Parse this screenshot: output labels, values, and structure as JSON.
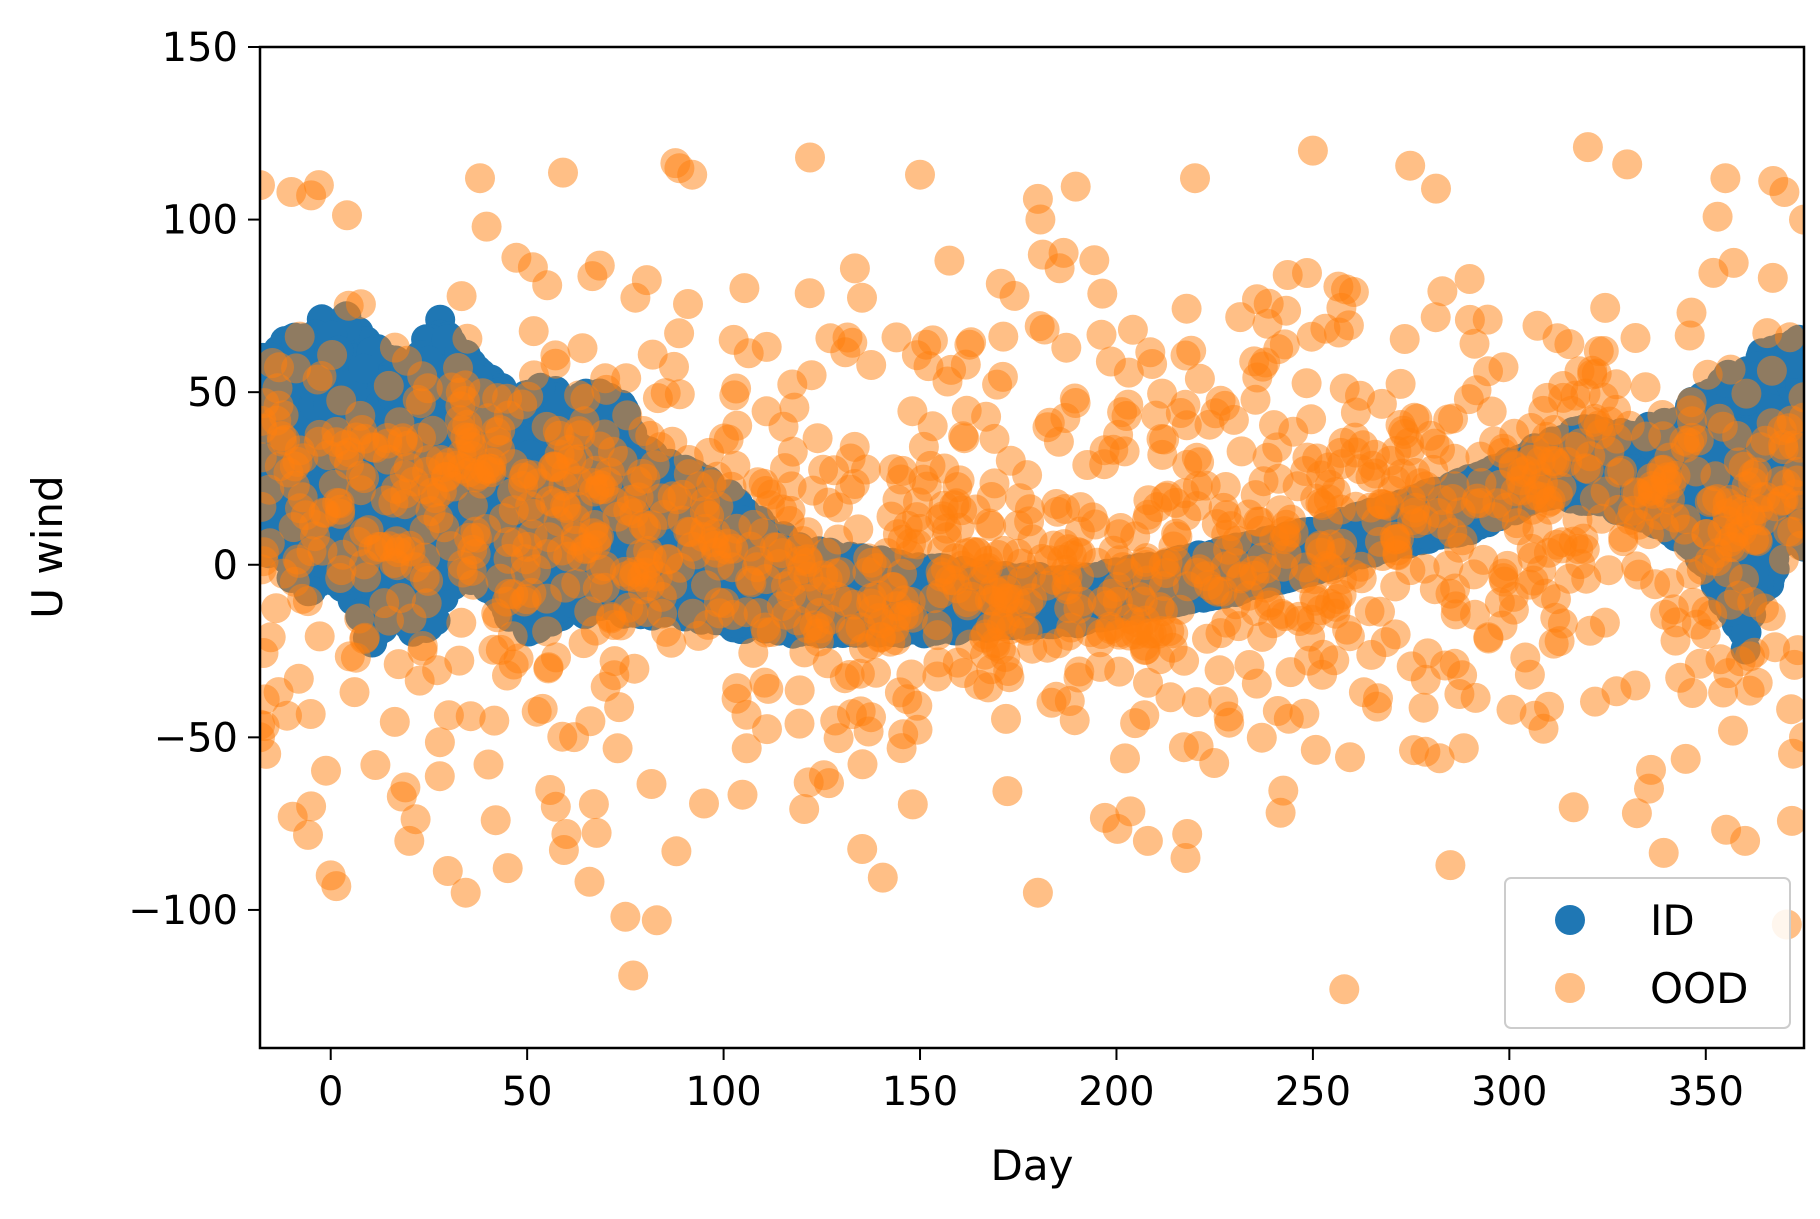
{
  "chart_data": {
    "type": "scatter",
    "xlabel": "Day",
    "ylabel": "U wind",
    "xlim": [
      -18,
      375
    ],
    "ylim": [
      -140,
      150
    ],
    "xticks": [
      0,
      50,
      100,
      150,
      200,
      250,
      300,
      350
    ],
    "yticks": [
      -100,
      -50,
      0,
      50,
      100,
      150
    ],
    "xtick_labels": [
      "0",
      "50",
      "100",
      "150",
      "200",
      "250",
      "300",
      "350"
    ],
    "ytick_labels": [
      "−100",
      "−50",
      "0",
      "50",
      "100",
      "150"
    ],
    "grid": false,
    "legend_position": "lower-right",
    "series": [
      {
        "name": "ID",
        "color": "#1f77b4",
        "alpha": 1.0,
        "band": {
          "x": [
            -18,
            -10,
            -5,
            0,
            5,
            10,
            15,
            20,
            25,
            30,
            35,
            40,
            45,
            50,
            55,
            60,
            65,
            70,
            75,
            80,
            85,
            90,
            100,
            110,
            120,
            130,
            150,
            170,
            190,
            210,
            230,
            250,
            270,
            290,
            300,
            310,
            320,
            330,
            340,
            350,
            355,
            360,
            365,
            370,
            375
          ],
          "upper": [
            62,
            66,
            70,
            73,
            73,
            68,
            60,
            58,
            70,
            72,
            60,
            55,
            50,
            50,
            52,
            50,
            50,
            52,
            45,
            35,
            30,
            28,
            22,
            12,
            5,
            3,
            0,
            -3,
            -4,
            0,
            5,
            10,
            17,
            25,
            30,
            36,
            40,
            38,
            42,
            50,
            55,
            58,
            62,
            64,
            66
          ],
          "lower": [
            5,
            -5,
            -10,
            -5,
            -10,
            -25,
            -15,
            -20,
            -25,
            -10,
            -5,
            -10,
            -15,
            -20,
            -18,
            -15,
            -15,
            -15,
            -15,
            -15,
            -15,
            -15,
            -18,
            -20,
            -20,
            -20,
            -20,
            -18,
            -17,
            -12,
            -8,
            -2,
            5,
            10,
            15,
            20,
            18,
            15,
            10,
            0,
            -15,
            -25,
            -10,
            5,
            5
          ]
        }
      },
      {
        "name": "OOD",
        "color": "#ff7f0e",
        "alpha": 0.5,
        "point_count": 1500,
        "notable_points": [
          [
            -18,
            110
          ],
          [
            -10,
            108
          ],
          [
            -5,
            107
          ],
          [
            -3,
            110
          ],
          [
            38,
            112
          ],
          [
            92,
            113
          ],
          [
            122,
            118
          ],
          [
            150,
            113
          ],
          [
            180,
            106
          ],
          [
            220,
            112
          ],
          [
            250,
            120
          ],
          [
            320,
            121
          ],
          [
            330,
            116
          ],
          [
            355,
            112
          ],
          [
            370,
            108
          ],
          [
            375,
            100
          ],
          [
            0,
            -90
          ],
          [
            -5,
            -70
          ],
          [
            20,
            -80
          ],
          [
            42,
            -74
          ],
          [
            60,
            -78
          ],
          [
            75,
            -102
          ],
          [
            77,
            -119
          ],
          [
            83,
            -103
          ],
          [
            88,
            -83
          ],
          [
            180,
            -95
          ],
          [
            208,
            -80
          ],
          [
            218,
            -78
          ],
          [
            258,
            -123
          ],
          [
            285,
            -87
          ],
          [
            360,
            -80
          ],
          [
            -18,
            -50
          ],
          [
            375,
            -50
          ]
        ]
      }
    ]
  }
}
